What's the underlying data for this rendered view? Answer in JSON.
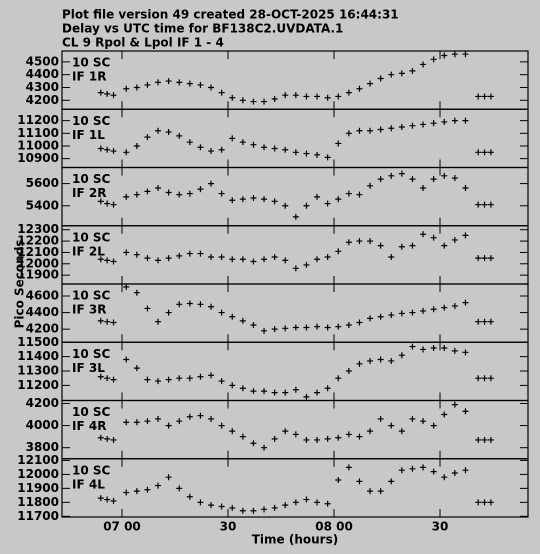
{
  "header": {
    "lines": [
      "Plot file version 49  created 28-OCT-2025 16:44:31",
      "Delay vs UTC time for BF138C2.UVDATA.1",
      "CL 9  Rpol & Lpol  IF 1 - 4"
    ]
  },
  "ylabel": "Pico Seconds",
  "chart_data": [
    {
      "type": "scatter",
      "title": "10 SC",
      "subtitle": "IF 1R",
      "xlim": [
        6.717,
        8.915
      ],
      "ylim": [
        4130,
        4585
      ],
      "yticks": [
        4200,
        4300,
        4400,
        4500
      ],
      "x": [
        6.9,
        6.93,
        6.96,
        7.02,
        7.07,
        7.12,
        7.17,
        7.22,
        7.27,
        7.32,
        7.37,
        7.42,
        7.47,
        7.52,
        7.57,
        7.62,
        7.67,
        7.72,
        7.77,
        7.82,
        7.87,
        7.92,
        7.97,
        8.02,
        8.07,
        8.12,
        8.17,
        8.22,
        8.27,
        8.32,
        8.37,
        8.42,
        8.47,
        8.52,
        8.57,
        8.62,
        8.68,
        8.71,
        8.74
      ],
      "values": [
        4260,
        4250,
        4240,
        4290,
        4300,
        4320,
        4340,
        4350,
        4340,
        4330,
        4320,
        4300,
        4260,
        4220,
        4200,
        4190,
        4190,
        4210,
        4240,
        4240,
        4230,
        4230,
        4220,
        4230,
        4260,
        4290,
        4330,
        4370,
        4400,
        4410,
        4430,
        4480,
        4520,
        4550,
        4560,
        4560,
        4230,
        4230,
        4230
      ]
    },
    {
      "type": "scatter",
      "title": "10 SC",
      "subtitle": "IF 1L",
      "xlim": [
        6.717,
        8.915
      ],
      "ylim": [
        10830,
        11290
      ],
      "yticks": [
        10900,
        11000,
        11100,
        11200
      ],
      "x": [
        6.9,
        6.93,
        6.96,
        7.02,
        7.07,
        7.12,
        7.17,
        7.22,
        7.27,
        7.32,
        7.37,
        7.42,
        7.47,
        7.52,
        7.57,
        7.62,
        7.67,
        7.72,
        7.77,
        7.82,
        7.87,
        7.92,
        7.97,
        8.02,
        8.07,
        8.12,
        8.17,
        8.22,
        8.27,
        8.32,
        8.37,
        8.42,
        8.47,
        8.52,
        8.57,
        8.62,
        8.68,
        8.71,
        8.74
      ],
      "values": [
        10980,
        10970,
        10960,
        10950,
        11000,
        11070,
        11120,
        11110,
        11080,
        11030,
        10990,
        10960,
        10970,
        11060,
        11030,
        11010,
        10990,
        10980,
        10970,
        10950,
        10940,
        10930,
        10910,
        11020,
        11100,
        11120,
        11120,
        11130,
        11140,
        11150,
        11160,
        11170,
        11180,
        11190,
        11200,
        11200,
        10950,
        10950,
        10950
      ]
    },
    {
      "type": "scatter",
      "title": "10 SC",
      "subtitle": "IF 2R",
      "xlim": [
        6.717,
        8.915
      ],
      "ylim": [
        5220,
        5745
      ],
      "yticks": [
        5400,
        5600
      ],
      "x": [
        6.9,
        6.93,
        6.96,
        7.02,
        7.07,
        7.12,
        7.17,
        7.22,
        7.27,
        7.32,
        7.37,
        7.42,
        7.47,
        7.52,
        7.57,
        7.62,
        7.67,
        7.72,
        7.77,
        7.82,
        7.87,
        7.92,
        7.97,
        8.02,
        8.07,
        8.12,
        8.17,
        8.22,
        8.27,
        8.32,
        8.37,
        8.42,
        8.47,
        8.52,
        8.57,
        8.62,
        8.68,
        8.71,
        8.74
      ],
      "values": [
        5440,
        5420,
        5410,
        5480,
        5500,
        5530,
        5560,
        5520,
        5500,
        5510,
        5550,
        5600,
        5510,
        5450,
        5460,
        5470,
        5460,
        5440,
        5400,
        5300,
        5400,
        5480,
        5420,
        5460,
        5510,
        5500,
        5580,
        5640,
        5670,
        5690,
        5640,
        5560,
        5640,
        5670,
        5650,
        5560,
        5410,
        5410,
        5410
      ]
    },
    {
      "type": "scatter",
      "title": "10 SC",
      "subtitle": "IF 2L",
      "xlim": [
        6.717,
        8.915
      ],
      "ylim": [
        11822,
        12335
      ],
      "yticks": [
        11900,
        12000,
        12100,
        12200,
        12300
      ],
      "x": [
        6.9,
        6.93,
        6.96,
        7.02,
        7.07,
        7.12,
        7.17,
        7.22,
        7.27,
        7.32,
        7.37,
        7.42,
        7.47,
        7.52,
        7.57,
        7.62,
        7.67,
        7.72,
        7.77,
        7.82,
        7.87,
        7.92,
        7.97,
        8.02,
        8.07,
        8.12,
        8.17,
        8.22,
        8.27,
        8.32,
        8.37,
        8.42,
        8.47,
        8.52,
        8.57,
        8.62,
        8.68,
        8.71,
        8.74
      ],
      "values": [
        12040,
        12030,
        12020,
        12100,
        12080,
        12050,
        12030,
        12050,
        12070,
        12090,
        12090,
        12060,
        12060,
        12040,
        12040,
        12020,
        12040,
        12060,
        12030,
        11960,
        11990,
        12040,
        12060,
        12110,
        12190,
        12200,
        12200,
        12160,
        12060,
        12150,
        12160,
        12260,
        12230,
        12160,
        12210,
        12250,
        12050,
        12050,
        12050
      ]
    },
    {
      "type": "scatter",
      "title": "10 SC",
      "subtitle": "IF 3R",
      "xlim": [
        6.717,
        8.915
      ],
      "ylim": [
        4042,
        4745
      ],
      "yticks": [
        4200,
        4400,
        4600
      ],
      "x": [
        6.9,
        6.93,
        6.96,
        7.02,
        7.07,
        7.12,
        7.17,
        7.22,
        7.27,
        7.32,
        7.37,
        7.42,
        7.47,
        7.52,
        7.57,
        7.62,
        7.67,
        7.72,
        7.77,
        7.82,
        7.87,
        7.92,
        7.97,
        8.02,
        8.07,
        8.12,
        8.17,
        8.22,
        8.27,
        8.32,
        8.37,
        8.42,
        8.47,
        8.52,
        8.57,
        8.62,
        8.68,
        8.71,
        8.74
      ],
      "values": [
        4300,
        4290,
        4280,
        4710,
        4640,
        4450,
        4290,
        4400,
        4500,
        4510,
        4500,
        4470,
        4400,
        4350,
        4300,
        4250,
        4180,
        4200,
        4210,
        4220,
        4220,
        4230,
        4220,
        4230,
        4250,
        4280,
        4330,
        4350,
        4370,
        4390,
        4400,
        4420,
        4440,
        4460,
        4480,
        4520,
        4290,
        4290,
        4290
      ]
    },
    {
      "type": "scatter",
      "title": "10 SC",
      "subtitle": "IF 3L",
      "xlim": [
        6.717,
        8.915
      ],
      "ylim": [
        11095,
        11500
      ],
      "yticks": [
        11200,
        11300,
        11400,
        11500
      ],
      "x": [
        6.9,
        6.93,
        6.96,
        7.02,
        7.07,
        7.12,
        7.17,
        7.22,
        7.27,
        7.32,
        7.37,
        7.42,
        7.47,
        7.52,
        7.57,
        7.62,
        7.67,
        7.72,
        7.77,
        7.82,
        7.87,
        7.92,
        7.97,
        8.02,
        8.07,
        8.12,
        8.17,
        8.22,
        8.27,
        8.32,
        8.37,
        8.42,
        8.47,
        8.52,
        8.57,
        8.62,
        8.68,
        8.71,
        8.74
      ],
      "values": [
        11260,
        11250,
        11240,
        11380,
        11320,
        11240,
        11230,
        11240,
        11250,
        11250,
        11260,
        11270,
        11230,
        11200,
        11180,
        11160,
        11160,
        11150,
        11150,
        11170,
        11120,
        11150,
        11180,
        11250,
        11300,
        11350,
        11370,
        11380,
        11370,
        11410,
        11470,
        11450,
        11460,
        11460,
        11440,
        11430,
        11250,
        11250,
        11250
      ]
    },
    {
      "type": "scatter",
      "title": "10 SC",
      "subtitle": "IF 4R",
      "xlim": [
        6.717,
        8.915
      ],
      "ylim": [
        3700,
        4227
      ],
      "yticks": [
        3800,
        4000,
        4200
      ],
      "x": [
        6.9,
        6.93,
        6.96,
        7.02,
        7.07,
        7.12,
        7.17,
        7.22,
        7.27,
        7.32,
        7.37,
        7.42,
        7.47,
        7.52,
        7.57,
        7.62,
        7.67,
        7.72,
        7.77,
        7.82,
        7.87,
        7.92,
        7.97,
        8.02,
        8.07,
        8.12,
        8.17,
        8.22,
        8.27,
        8.32,
        8.37,
        8.42,
        8.47,
        8.52,
        8.57,
        8.62,
        8.68,
        8.71,
        8.74
      ],
      "values": [
        3890,
        3880,
        3870,
        4030,
        4030,
        4040,
        4060,
        4000,
        4040,
        4080,
        4090,
        4060,
        4000,
        3950,
        3900,
        3840,
        3800,
        3880,
        3950,
        3920,
        3870,
        3870,
        3880,
        3890,
        3920,
        3900,
        3950,
        4060,
        4000,
        3950,
        4060,
        4040,
        4000,
        4100,
        4190,
        4130,
        3870,
        3870,
        3870
      ]
    },
    {
      "type": "scatter",
      "title": "10 SC",
      "subtitle": "IF 4L",
      "xlim": [
        6.717,
        8.915
      ],
      "ylim": [
        11695,
        12112
      ],
      "yticks": [
        11700,
        11800,
        11900,
        12000,
        12100
      ],
      "xlabel": "Time (hours)",
      "xticks": [
        {
          "value": 7.0,
          "label": "07 00"
        },
        {
          "value": 7.5,
          "label": "30"
        },
        {
          "value": 8.0,
          "label": "08 00"
        },
        {
          "value": 8.5,
          "label": "30"
        }
      ],
      "x": [
        6.9,
        6.93,
        6.96,
        7.02,
        7.07,
        7.12,
        7.17,
        7.22,
        7.27,
        7.32,
        7.37,
        7.42,
        7.47,
        7.52,
        7.57,
        7.62,
        7.67,
        7.72,
        7.77,
        7.82,
        7.87,
        7.92,
        7.97,
        8.02,
        8.07,
        8.12,
        8.17,
        8.22,
        8.27,
        8.32,
        8.37,
        8.42,
        8.47,
        8.52,
        8.57,
        8.62,
        8.68,
        8.71,
        8.74
      ],
      "values": [
        11830,
        11820,
        11810,
        11870,
        11880,
        11890,
        11920,
        11980,
        11900,
        11840,
        11800,
        11780,
        11770,
        11760,
        11740,
        11740,
        11750,
        11760,
        11780,
        11800,
        11820,
        11800,
        11790,
        11960,
        12050,
        11950,
        11880,
        11880,
        11950,
        12030,
        12040,
        12050,
        12020,
        11980,
        12010,
        12030,
        11800,
        11800,
        11800
      ]
    }
  ]
}
